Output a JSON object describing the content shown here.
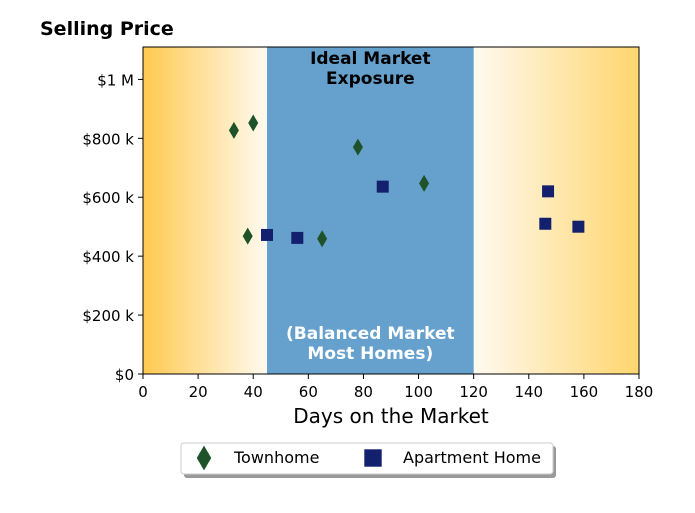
{
  "chart_data": {
    "type": "scatter",
    "title": "Selling Price",
    "xlabel": "Days on the Market",
    "ylabel": "",
    "xlim": [
      0,
      180
    ],
    "ylim": [
      0,
      1110000
    ],
    "x_ticks": [
      0,
      20,
      40,
      60,
      80,
      100,
      120,
      140,
      160,
      180
    ],
    "x_tick_labels": [
      "0",
      "20",
      "40",
      "60",
      "80",
      "100",
      "120",
      "140",
      "160",
      "180"
    ],
    "y_ticks": [
      0,
      200000,
      400000,
      600000,
      800000,
      1000000
    ],
    "y_tick_labels": [
      "$0",
      "$200 k",
      "$400 k",
      "$600 k",
      "$800 k",
      "$1 M"
    ],
    "grid": false,
    "legend_position": "bottom-center",
    "background": {
      "left_gradient": {
        "x_range": [
          0,
          45
        ],
        "from": "#ffc94f",
        "to": "#fffaf0"
      },
      "band": {
        "x_range": [
          45,
          120
        ],
        "color": "#66a0cc"
      },
      "right_gradient": {
        "x_range": [
          120,
          180
        ],
        "from": "#fffaf0",
        "to": "#ffd66e"
      }
    },
    "band_labels": {
      "top": [
        "Ideal Market",
        "Exposure"
      ],
      "bottom": [
        "(Balanced Market",
        "Most Homes)"
      ],
      "top_color": "#000000",
      "bottom_color": "#ffffff"
    },
    "series": [
      {
        "name": "Townhome",
        "marker": "diamond",
        "color": "#1e5228",
        "points": [
          {
            "x": 33,
            "y": 827000
          },
          {
            "x": 40,
            "y": 852000
          },
          {
            "x": 38,
            "y": 468000
          },
          {
            "x": 65,
            "y": 459000
          },
          {
            "x": 78,
            "y": 770000
          },
          {
            "x": 102,
            "y": 647000
          }
        ]
      },
      {
        "name": "Apartment Home",
        "marker": "square",
        "color": "#13206e",
        "points": [
          {
            "x": 45,
            "y": 472000
          },
          {
            "x": 56,
            "y": 462000
          },
          {
            "x": 87,
            "y": 636000
          },
          {
            "x": 147,
            "y": 620000
          },
          {
            "x": 146,
            "y": 510000
          },
          {
            "x": 158,
            "y": 500000
          }
        ]
      }
    ]
  }
}
